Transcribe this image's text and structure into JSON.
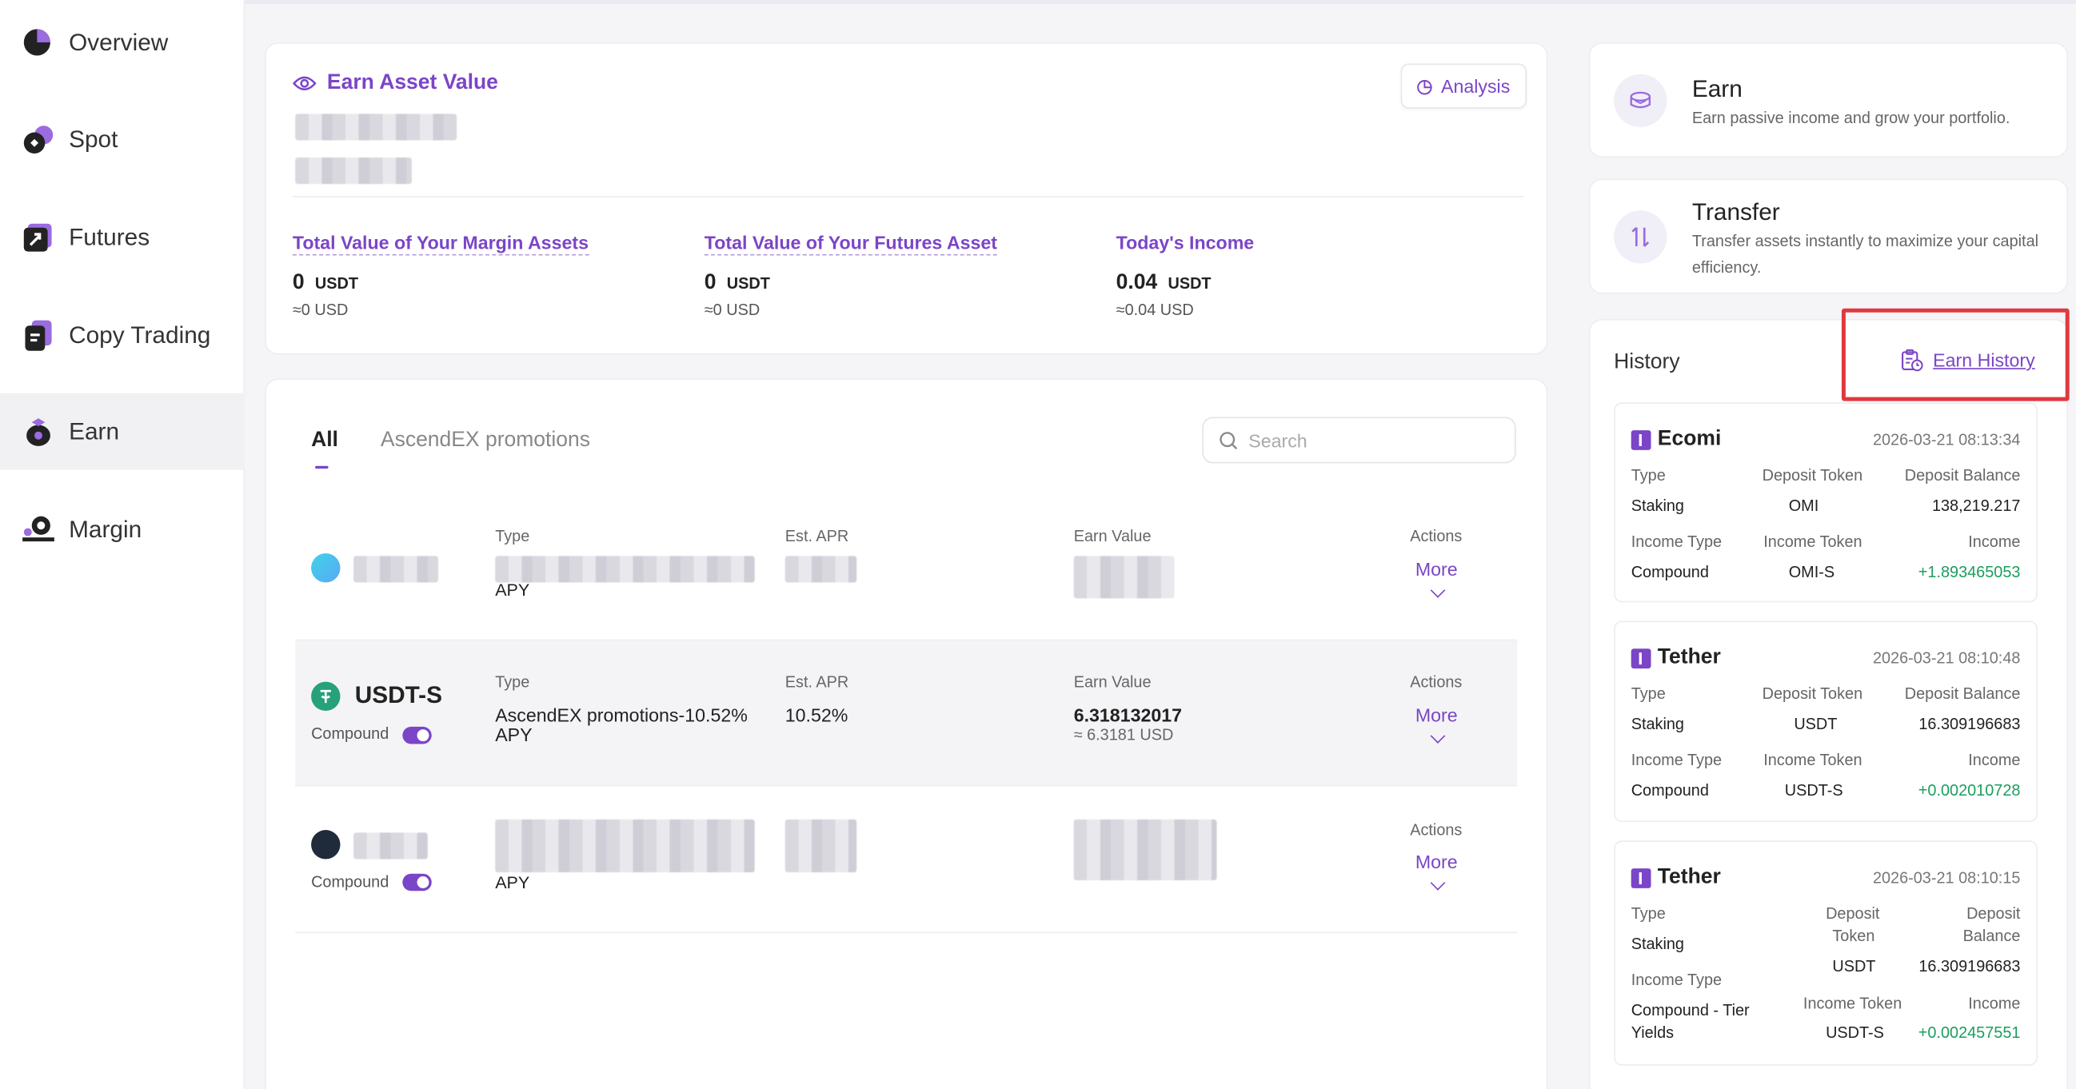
{
  "sidebar": {
    "items": [
      {
        "label": "Overview",
        "icon": "pie-chart-icon"
      },
      {
        "label": "Spot",
        "icon": "spot-icon"
      },
      {
        "label": "Futures",
        "icon": "futures-icon"
      },
      {
        "label": "Copy Trading",
        "icon": "copy-trading-icon"
      },
      {
        "label": "Earn",
        "icon": "earn-icon",
        "active": true
      },
      {
        "label": "Margin",
        "icon": "margin-icon"
      }
    ]
  },
  "asset_card": {
    "title": "Earn Asset Value",
    "analysis_label": "Analysis",
    "stats": [
      {
        "title": "Total Value of Your Margin Assets",
        "value": "0",
        "unit": "USDT",
        "sub": "≈0 USD"
      },
      {
        "title": "Total Value of Your Futures Asset",
        "value": "0",
        "unit": "USDT",
        "sub": "≈0 USD"
      },
      {
        "title": "Today's Income",
        "value": "0.04",
        "unit": "USDT",
        "sub": "≈0.04 USD"
      }
    ]
  },
  "products": {
    "tabs": [
      "All",
      "AscendEX promotions"
    ],
    "search_placeholder": "Search",
    "col_labels": {
      "type": "Type",
      "apr": "Est. APR",
      "earn": "Earn Value",
      "actions": "Actions"
    },
    "more_label": "More",
    "rows": [
      {
        "token": "",
        "type": "",
        "type_tail": "APY",
        "apr": "",
        "earn": "",
        "earn_sub": "",
        "redacted": true
      },
      {
        "token": "USDT-S",
        "compound_label": "Compound",
        "type": "AscendEX promotions-10.52%",
        "type_tail": "APY",
        "apr": "10.52%",
        "earn": "6.318132017",
        "earn_sub": "≈ 6.3181 USD",
        "redacted": false
      },
      {
        "token": "",
        "compound_label": "Compound",
        "type": "",
        "type_tail": "APY",
        "apr": "",
        "earn": "",
        "earn_sub": "",
        "redacted": true
      }
    ]
  },
  "earn_card": {
    "title": "Earn",
    "sub": "Earn passive income and grow your portfolio."
  },
  "transfer_card": {
    "title": "Transfer",
    "sub": "Transfer assets instantly to maximize your capital efficiency."
  },
  "history": {
    "title": "History",
    "link_label": "Earn History",
    "highlight_color": "#e0393e",
    "labels": {
      "type": "Type",
      "deposit_token": "Deposit Token",
      "deposit_balance": "Deposit Balance",
      "income_type": "Income Type",
      "income_token": "Income Token",
      "income": "Income"
    },
    "entries": [
      {
        "name": "Ecomi",
        "time": "2026-03-21 08:13:34",
        "type": "Staking",
        "deposit_token": "OMI",
        "deposit_balance": "138,219.217",
        "income_type": "Compound",
        "income_token": "OMI-S",
        "income": "+1.893465053"
      },
      {
        "name": "Tether",
        "time": "2026-03-21 08:10:48",
        "type": "Staking",
        "deposit_token": "USDT",
        "deposit_balance": "16.309196683",
        "income_type": "Compound",
        "income_token": "USDT-S",
        "income": "+0.002010728"
      },
      {
        "name": "Tether",
        "time": "2026-03-21 08:10:15",
        "type": "Staking",
        "deposit_token": "USDT",
        "deposit_balance": "16.309196683",
        "income_type": "Compound - Tier Yields",
        "income_token": "USDT-S",
        "income": "+0.002457551"
      }
    ],
    "third_labels": {
      "deposit_token_1": "Deposit",
      "deposit_token_2": "Token",
      "deposit_balance_1": "Deposit",
      "deposit_balance_2": "Balance",
      "income_type_1": "Compound - Tier",
      "income_type_2": "Yields"
    }
  }
}
